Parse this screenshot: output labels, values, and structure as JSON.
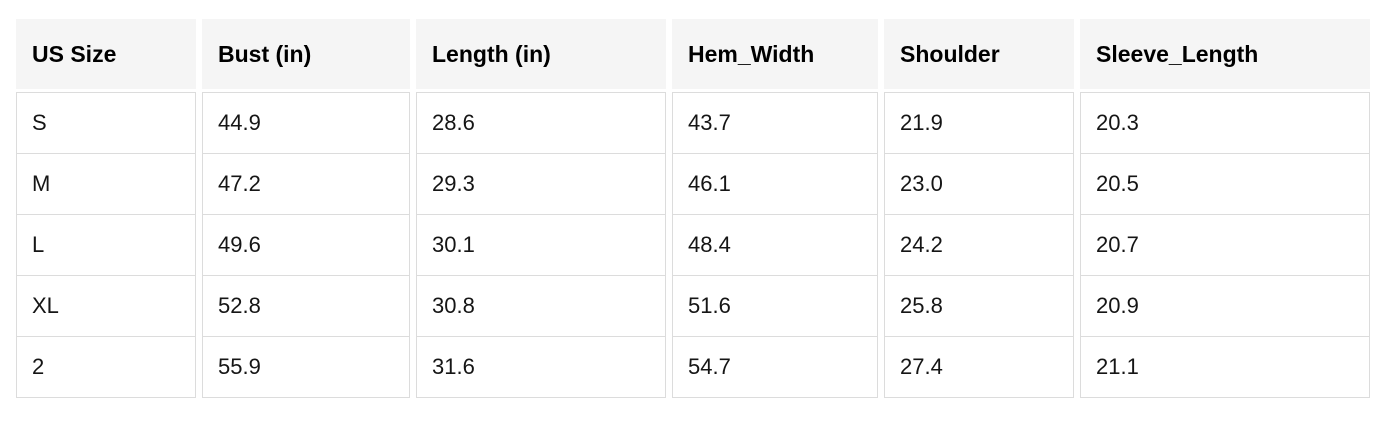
{
  "table": {
    "headers": [
      "US Size",
      "Bust (in)",
      "Length (in)",
      "Hem_Width",
      "Shoulder",
      "Sleeve_Length"
    ],
    "rows": [
      [
        "S",
        "44.9",
        "28.6",
        "43.7",
        "21.9",
        "20.3"
      ],
      [
        "M",
        "47.2",
        "29.3",
        "46.1",
        "23.0",
        "20.5"
      ],
      [
        "L",
        "49.6",
        "30.1",
        "48.4",
        "24.2",
        "20.7"
      ],
      [
        "XL",
        "52.8",
        "30.8",
        "51.6",
        "25.8",
        "20.9"
      ],
      [
        "2",
        "55.9",
        "31.6",
        "54.7",
        "27.4",
        "21.1"
      ]
    ]
  },
  "chart_data": {
    "type": "table",
    "columns": [
      "US Size",
      "Bust (in)",
      "Length (in)",
      "Hem_Width",
      "Shoulder",
      "Sleeve_Length"
    ],
    "rows": [
      [
        "S",
        44.9,
        28.6,
        43.7,
        21.9,
        20.3
      ],
      [
        "M",
        47.2,
        29.3,
        46.1,
        23.0,
        20.5
      ],
      [
        "L",
        49.6,
        30.1,
        48.4,
        24.2,
        20.7
      ],
      [
        "XL",
        52.8,
        30.8,
        51.6,
        25.8,
        20.9
      ],
      [
        "2",
        55.9,
        31.6,
        54.7,
        27.4,
        21.1
      ]
    ]
  },
  "colors": {
    "header_bg": "#f5f5f5",
    "cell_border": "#dcdcdc",
    "header_text": "#000000",
    "cell_text": "#151515",
    "background": "#ffffff"
  }
}
